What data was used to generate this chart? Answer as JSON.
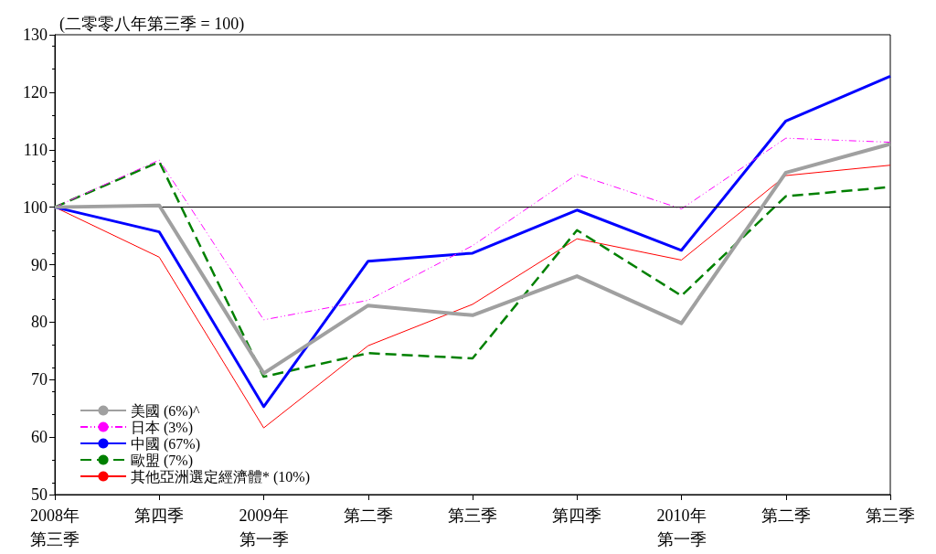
{
  "chart_data": {
    "type": "line",
    "annotations": [
      "(二零零八年第三季 = 100)"
    ],
    "categories": [
      "2008年第三季",
      "第四季",
      "2009年第一季",
      "第二季",
      "第三季",
      "第四季",
      "2010年第一季",
      "第二季",
      "第三季"
    ],
    "series": [
      {
        "name": "美國 (6%)^",
        "color": "#a0a0a0",
        "line_style": "solid",
        "values": [
          100,
          100.3,
          71.1,
          82.9,
          81.2,
          88,
          79.8,
          106,
          111
        ]
      },
      {
        "name": "日本 (3%)",
        "color": "#ff00ff",
        "line_style": "dotted",
        "values": [
          100,
          108.2,
          80.4,
          83.8,
          93.3,
          105.7,
          99.7,
          112,
          111.3
        ]
      },
      {
        "name": "中國 (67%)",
        "color": "#0000ff",
        "line_style": "solid",
        "values": [
          100,
          95.7,
          65.3,
          90.6,
          92,
          99.5,
          92.5,
          115,
          122.8
        ]
      },
      {
        "name": "歐盟 (7%)",
        "color": "#008000",
        "line_style": "dashed",
        "values": [
          100,
          107.9,
          70.5,
          74.6,
          73.7,
          96,
          84.6,
          101.9,
          103.5
        ]
      },
      {
        "name": "其他亞洲選定經濟體* (10%)",
        "color": "#ff0000",
        "line_style": "solid",
        "values": [
          100,
          91.3,
          61.6,
          75.9,
          83.1,
          94.5,
          90.8,
          105.5,
          107.3
        ]
      }
    ],
    "ylim": [
      50,
      130
    ],
    "yticks": [
      50,
      60,
      70,
      80,
      90,
      100,
      110,
      120,
      130
    ],
    "ref_lines": [
      {
        "axis": "y",
        "value": 100,
        "color": "#000000"
      }
    ],
    "grid": false,
    "legend": "bottom left",
    "marker": "none"
  }
}
